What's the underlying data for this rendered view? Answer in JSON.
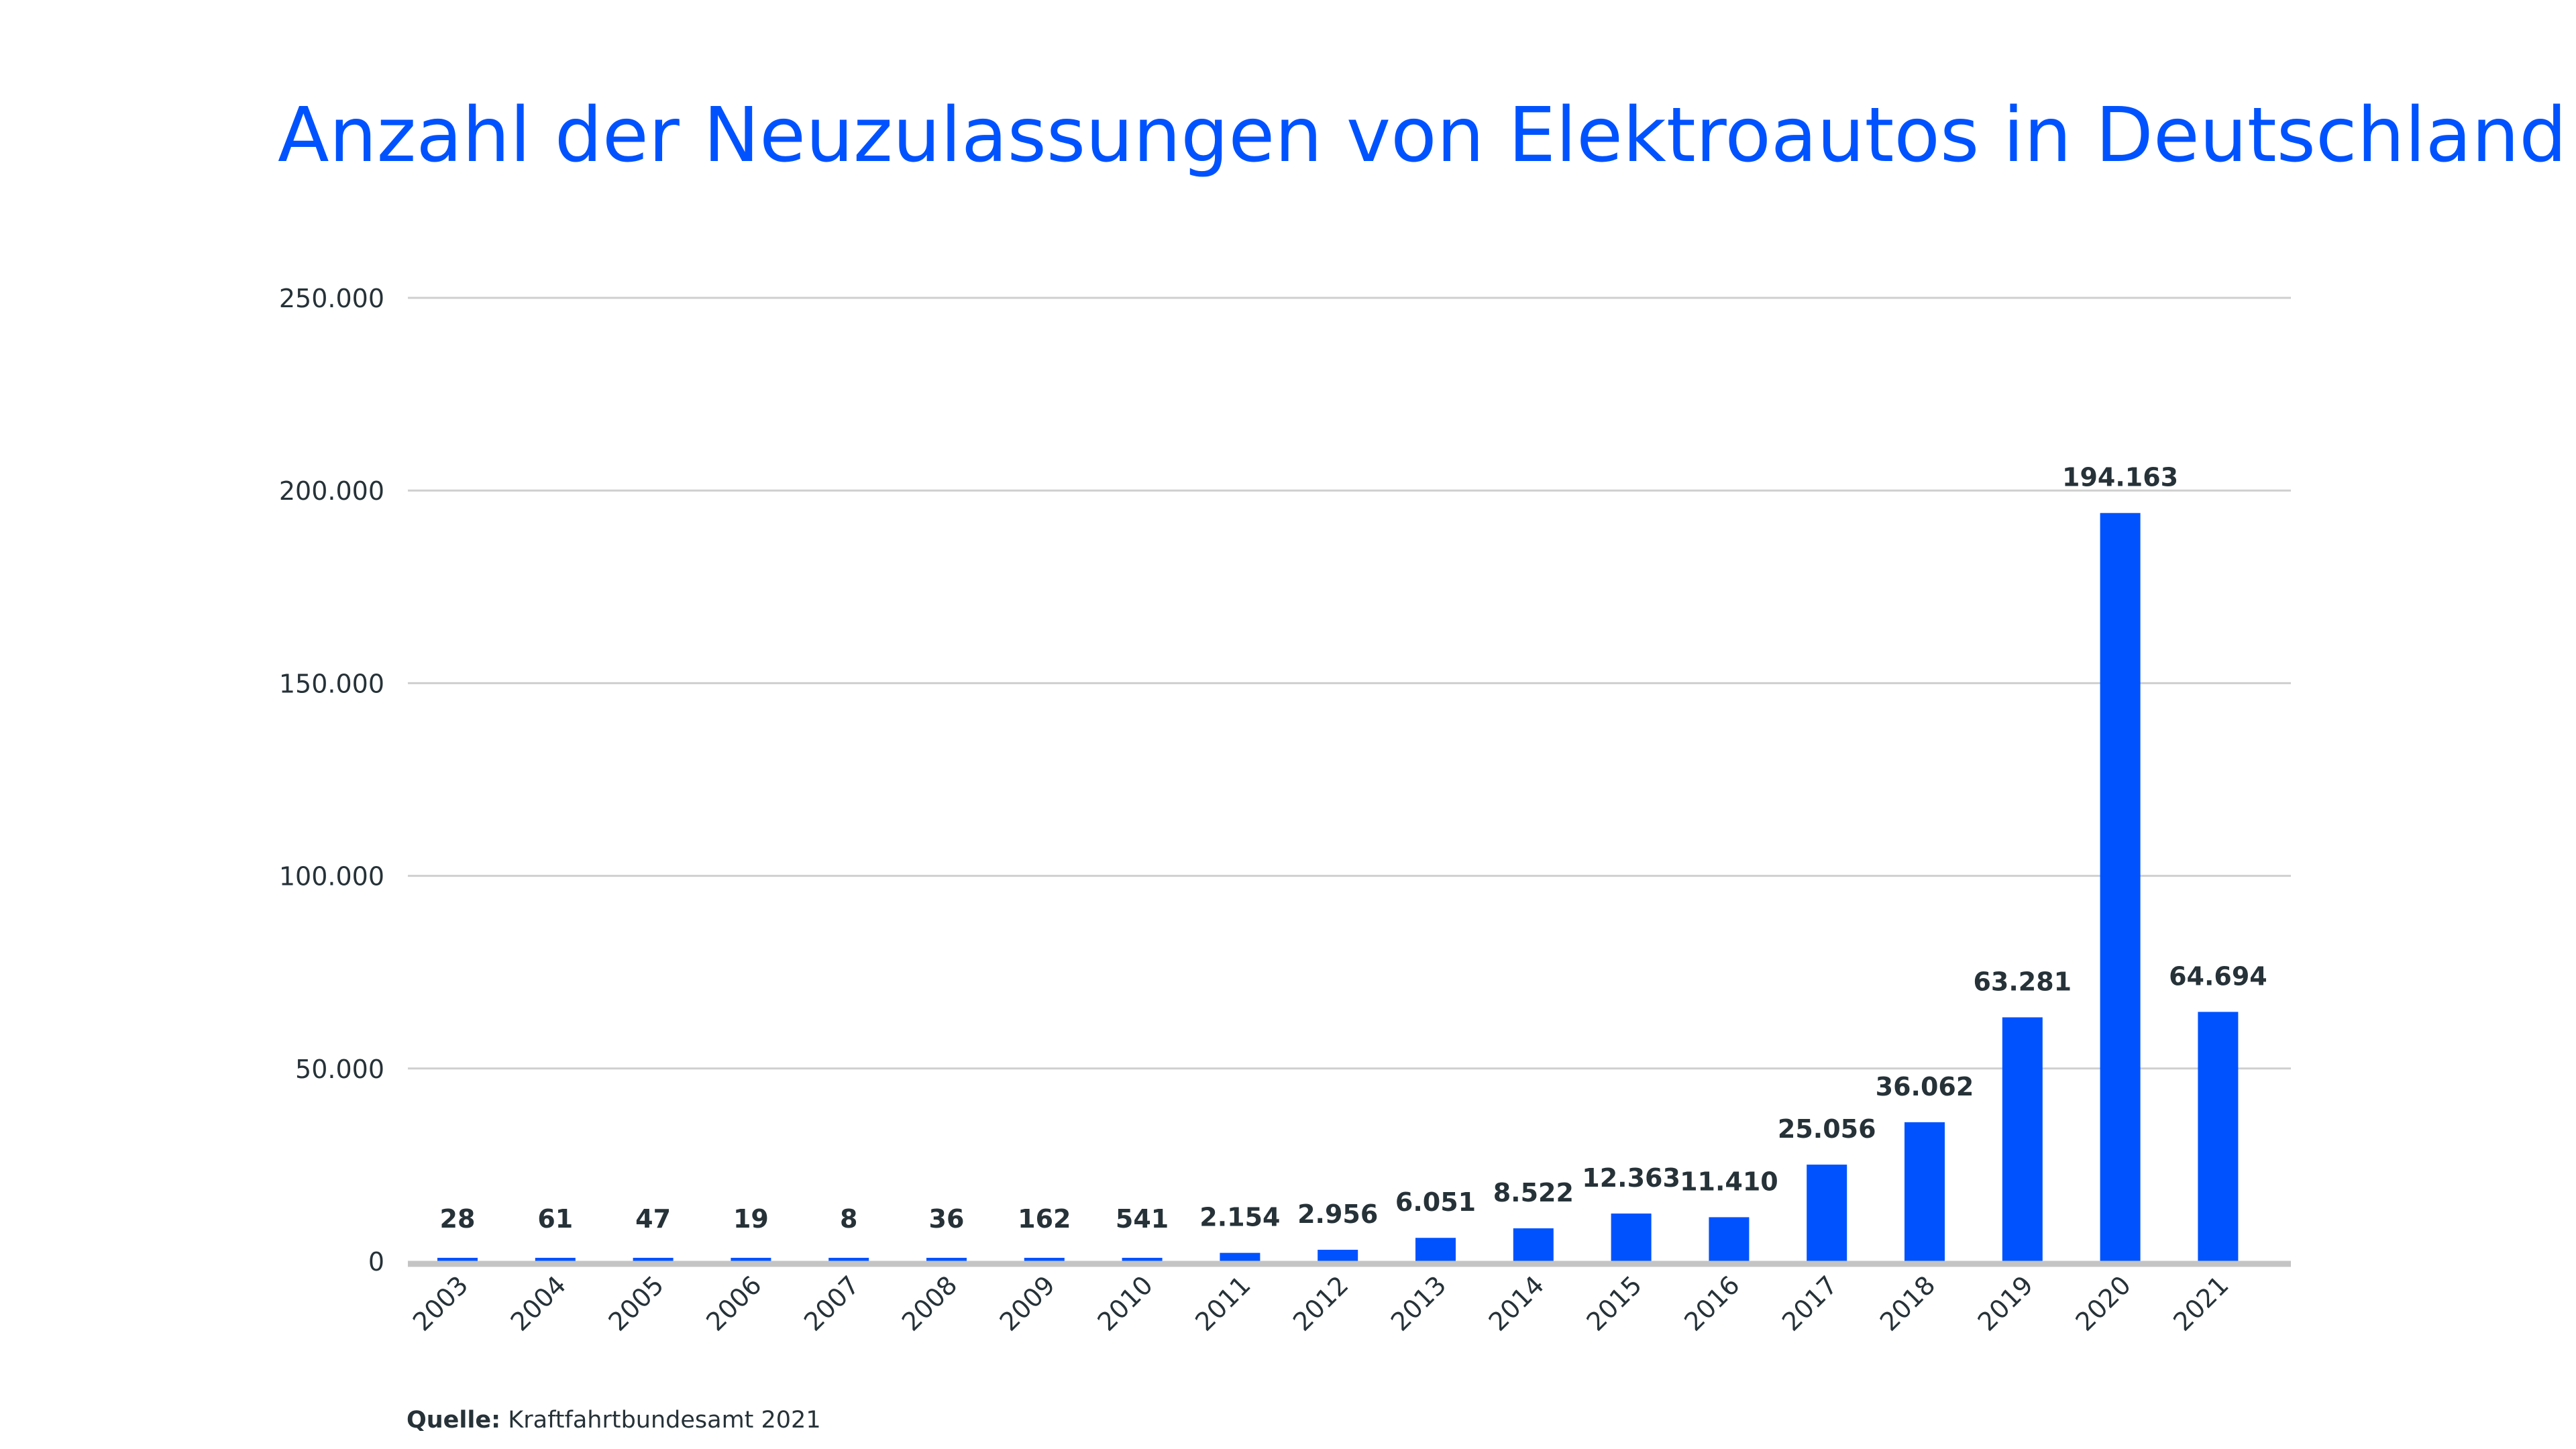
{
  "chart_data": {
    "type": "bar",
    "title": "Anzahl der Neuzulassungen von Elektroautos in Deutschland",
    "xlabel": "",
    "ylabel": "",
    "categories": [
      "2003",
      "2004",
      "2005",
      "2006",
      "2007",
      "2008",
      "2009",
      "2010",
      "2011",
      "2012",
      "2013",
      "2014",
      "2015",
      "2016",
      "2017",
      "2018",
      "2019",
      "2020",
      "2021"
    ],
    "values": [
      28,
      61,
      47,
      19,
      8,
      36,
      162,
      541,
      2154,
      2956,
      6051,
      8522,
      12363,
      11410,
      25056,
      36062,
      63281,
      194163,
      64694
    ],
    "value_labels": [
      "28",
      "61",
      "47",
      "19",
      "8",
      "36",
      "162",
      "541",
      "2.154",
      "2.956",
      "6.051",
      "8.522",
      "12.363",
      "11.410",
      "25.056",
      "36.062",
      "63.281",
      "194.163",
      "64.694"
    ],
    "ylim": [
      0,
      250000
    ],
    "yticks": [
      0,
      50000,
      100000,
      150000,
      200000,
      250000
    ],
    "ytick_labels": [
      "0",
      "50.000",
      "100.000",
      "150.000",
      "200.000",
      "250.000"
    ],
    "grid": true,
    "bar_color": "#0052ff",
    "title_color": "#0052ff"
  },
  "source": {
    "label": "Quelle:",
    "text": "Kraftfahrtbundesamt 2021"
  }
}
